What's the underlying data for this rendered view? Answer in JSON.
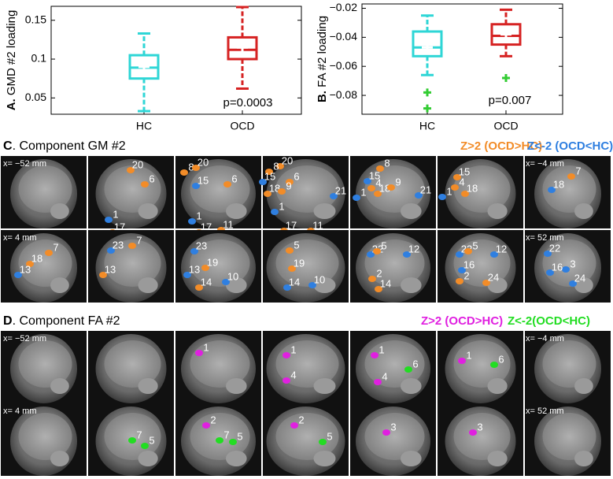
{
  "chart_data": [
    {
      "type": "box",
      "panel": "A.",
      "ylabel": "GMD #2 loading",
      "categories": [
        "HC",
        "OCD"
      ],
      "colors": [
        "#2ed6d6",
        "#d62222"
      ],
      "mean_color": "#ffffff",
      "flier_color": "#33cc33",
      "boxes": [
        {
          "whislo": 0.033,
          "q1": 0.075,
          "med": 0.089,
          "q3": 0.105,
          "whishi": 0.133,
          "mean": 0.09,
          "fliers": []
        },
        {
          "whislo": 0.062,
          "q1": 0.1,
          "med": 0.112,
          "q3": 0.128,
          "whishi": 0.167,
          "mean": 0.115,
          "fliers": []
        }
      ],
      "ylim": [
        0.029,
        0.168
      ],
      "yticks": [
        0.05,
        0.1,
        0.15
      ],
      "annotation": "p=0.0003"
    },
    {
      "type": "box",
      "panel": "B.",
      "ylabel": "FA #2 loading",
      "categories": [
        "HC",
        "OCD"
      ],
      "colors": [
        "#2ed6d6",
        "#d62222"
      ],
      "mean_color": "#ffffff",
      "flier_color": "#33cc33",
      "boxes": [
        {
          "whislo": -0.066,
          "q1": -0.053,
          "med": -0.047,
          "q3": -0.036,
          "whishi": -0.025,
          "mean": -0.047,
          "fliers": [
            -0.078,
            -0.089
          ]
        },
        {
          "whislo": -0.053,
          "q1": -0.045,
          "med": -0.039,
          "q3": -0.031,
          "whishi": -0.021,
          "mean": -0.038,
          "fliers": [
            -0.068
          ]
        }
      ],
      "ylim": [
        -0.093,
        -0.017
      ],
      "yticks": [
        {
          "value": -0.02,
          "label": "−0.02"
        },
        {
          "value": -0.04,
          "label": "−0.04"
        },
        {
          "value": -0.06,
          "label": "−0.06"
        },
        {
          "value": -0.08,
          "label": "−0.08"
        }
      ],
      "annotation": "p=0.007"
    }
  ],
  "brain_panels": [
    {
      "panel": "C",
      "title": ". Component GM #2",
      "legend": [
        {
          "text": "Z>2 (OCD>HC)",
          "color": "#f28c28"
        },
        {
          "text": "Z<-2 (OCD<HC)",
          "color": "#2f7fe0"
        }
      ],
      "slices": [
        {
          "label": "x= −52 mm",
          "regions": []
        },
        {
          "label": null,
          "regions": [
            "20",
            "6",
            "1",
            "17"
          ]
        },
        {
          "label": null,
          "regions": [
            "8",
            "20",
            "15",
            "6",
            "1",
            "17",
            "11"
          ]
        },
        {
          "label": null,
          "regions": [
            "20",
            "8",
            "15",
            "6",
            "18",
            "9",
            "1",
            "17",
            "11",
            "21"
          ]
        },
        {
          "label": null,
          "regions": [
            "8",
            "15",
            "4",
            "18",
            "9",
            "1",
            "21"
          ]
        },
        {
          "label": null,
          "regions": [
            "15",
            "4",
            "18",
            "1"
          ]
        },
        {
          "label": "x= −4 mm",
          "regions": [
            "7",
            "18"
          ]
        },
        {
          "label": "x= 4 mm",
          "regions": [
            "7",
            "18",
            "13"
          ]
        },
        {
          "label": null,
          "regions": [
            "23",
            "7",
            "13"
          ]
        },
        {
          "label": null,
          "regions": [
            "23",
            "19",
            "13",
            "14",
            "10"
          ]
        },
        {
          "label": null,
          "regions": [
            "5",
            "19",
            "14",
            "10"
          ]
        },
        {
          "label": null,
          "regions": [
            "22",
            "5",
            "12",
            "2",
            "14"
          ]
        },
        {
          "label": null,
          "regions": [
            "22",
            "5",
            "12",
            "16",
            "2",
            "24"
          ]
        },
        {
          "label": "x= 52 mm",
          "regions": [
            "22",
            "3",
            "16",
            "24"
          ]
        }
      ]
    },
    {
      "panel": "D",
      "title": ". Component FA #2",
      "legend": [
        {
          "text": "Z>2 (OCD>HC)",
          "color": "#e020e0"
        },
        {
          "text": "Z<-2(OCD<HC)",
          "color": "#22dd22"
        }
      ],
      "slices": [
        {
          "label": "x= −52 mm",
          "regions": []
        },
        {
          "label": null,
          "regions": []
        },
        {
          "label": null,
          "regions": [
            "1"
          ]
        },
        {
          "label": null,
          "regions": [
            "1",
            "4"
          ]
        },
        {
          "label": null,
          "regions": [
            "1",
            "4",
            "6"
          ]
        },
        {
          "label": null,
          "regions": [
            "1",
            "6"
          ]
        },
        {
          "label": "x= −4 mm",
          "regions": []
        },
        {
          "label": "x= 4 mm",
          "regions": []
        },
        {
          "label": null,
          "regions": [
            "7",
            "5"
          ]
        },
        {
          "label": null,
          "regions": [
            "2",
            "7",
            "5"
          ]
        },
        {
          "label": null,
          "regions": [
            "2",
            "5"
          ]
        },
        {
          "label": null,
          "regions": [
            "3"
          ]
        },
        {
          "label": null,
          "regions": [
            "3"
          ]
        },
        {
          "label": "x= 52 mm",
          "regions": []
        }
      ]
    }
  ]
}
